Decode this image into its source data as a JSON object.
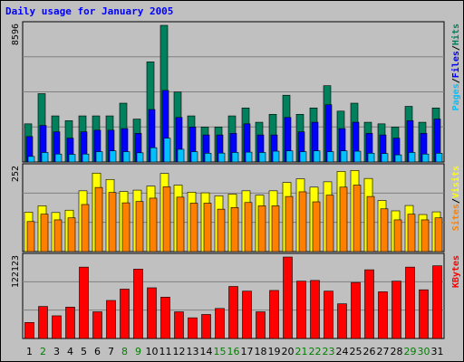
{
  "title": "Daily usage for January 2005",
  "colors": {
    "background": "#c0c0c0",
    "plot_bg": "#c0c0c0",
    "hits": "#00805c",
    "files": "#0000ff",
    "pages": "#00c0ff",
    "visits": "#ffff00",
    "sites": "#ff8000",
    "kbytes": "#ff0000",
    "title": "#0000ff"
  },
  "chart_data": [
    {
      "type": "bar",
      "panel": "top",
      "ymax_label": "8596",
      "ylim": [
        0,
        8596
      ],
      "legend": [
        {
          "text": "Pages",
          "color": "#00c0ff"
        },
        {
          "text": "/",
          "color": "#000000"
        },
        {
          "text": "Files",
          "color": "#0000ff"
        },
        {
          "text": "/",
          "color": "#000000"
        },
        {
          "text": "Hits",
          "color": "#00805c"
        }
      ],
      "categories": [
        "1",
        "2",
        "3",
        "4",
        "5",
        "6",
        "7",
        "8",
        "9",
        "10",
        "11",
        "12",
        "13",
        "14",
        "15",
        "16",
        "17",
        "18",
        "19",
        "20",
        "21",
        "22",
        "23",
        "24",
        "25",
        "26",
        "27",
        "28",
        "29",
        "30",
        "31"
      ],
      "series": [
        {
          "name": "Hits",
          "values": [
            2400,
            4300,
            2900,
            2600,
            2900,
            2900,
            2900,
            3700,
            2700,
            6300,
            8596,
            4400,
            2900,
            2200,
            2200,
            2900,
            3400,
            2500,
            3000,
            4200,
            3000,
            3400,
            4800,
            3200,
            3700,
            2500,
            2400,
            2200,
            3500,
            2500,
            3400
          ]
        },
        {
          "name": "Files",
          "values": [
            1600,
            2300,
            1900,
            1500,
            1900,
            2000,
            2000,
            2100,
            1800,
            3300,
            4500,
            2800,
            2200,
            1700,
            1700,
            1800,
            2400,
            1700,
            1700,
            2800,
            1900,
            2500,
            3600,
            2100,
            2500,
            1800,
            1700,
            1500,
            2600,
            1800,
            2700
          ]
        },
        {
          "name": "Pages",
          "values": [
            350,
            600,
            500,
            480,
            500,
            650,
            700,
            650,
            580,
            900,
            1500,
            800,
            650,
            550,
            560,
            600,
            620,
            600,
            680,
            700,
            650,
            700,
            650,
            700,
            680,
            550,
            530,
            450,
            600,
            500,
            550
          ]
        }
      ]
    },
    {
      "type": "bar",
      "panel": "middle",
      "ymax_label": "252",
      "ylim": [
        0,
        252
      ],
      "legend": [
        {
          "text": "Sites",
          "color": "#ff8000"
        },
        {
          "text": "/",
          "color": "#000000"
        },
        {
          "text": "Visits",
          "color": "#ffff00"
        }
      ],
      "categories": [
        "1",
        "2",
        "3",
        "4",
        "5",
        "6",
        "7",
        "8",
        "9",
        "10",
        "11",
        "12",
        "13",
        "14",
        "15",
        "16",
        "17",
        "18",
        "19",
        "20",
        "21",
        "22",
        "23",
        "24",
        "25",
        "26",
        "27",
        "28",
        "29",
        "30",
        "31"
      ],
      "series": [
        {
          "name": "Visits",
          "values": [
            118,
            137,
            117,
            124,
            182,
            235,
            216,
            180,
            184,
            196,
            234,
            199,
            178,
            176,
            167,
            172,
            182,
            169,
            182,
            207,
            218,
            193,
            209,
            240,
            243,
            219,
            153,
            122,
            138,
            111,
            119
          ]
        },
        {
          "name": "Sites",
          "values": [
            90,
            112,
            95,
            101,
            141,
            192,
            177,
            146,
            150,
            160,
            194,
            163,
            145,
            145,
            127,
            132,
            147,
            137,
            137,
            165,
            179,
            149,
            169,
            193,
            199,
            165,
            128,
            95,
            112,
            95,
            101
          ]
        }
      ]
    },
    {
      "type": "bar",
      "panel": "bottom",
      "ymax_label": "122123",
      "ylim": [
        0,
        122123
      ],
      "legend": [
        {
          "text": "KBytes",
          "color": "#ff0000"
        }
      ],
      "categories": [
        "1",
        "2",
        "3",
        "4",
        "5",
        "6",
        "7",
        "8",
        "9",
        "10",
        "11",
        "12",
        "13",
        "14",
        "15",
        "16",
        "17",
        "18",
        "19",
        "20",
        "21",
        "22",
        "23",
        "24",
        "25",
        "26",
        "27",
        "28",
        "29",
        "30",
        "31"
      ],
      "series": [
        {
          "name": "KBytes",
          "values": [
            24000,
            48000,
            34000,
            47000,
            107000,
            40000,
            57000,
            74000,
            104000,
            76000,
            62000,
            40000,
            31000,
            36000,
            45000,
            78000,
            71000,
            40000,
            72000,
            122123,
            86000,
            87000,
            71000,
            52000,
            84000,
            103000,
            70000,
            86000,
            107000,
            73000,
            109000
          ]
        }
      ]
    }
  ],
  "x_label_colors": [
    "#000000",
    "#008000",
    "#000000",
    "#000000",
    "#000000",
    "#000000",
    "#000000",
    "#008000",
    "#008000",
    "#000000",
    "#000000",
    "#000000",
    "#000000",
    "#000000",
    "#008000",
    "#008000",
    "#000000",
    "#000000",
    "#000000",
    "#000000",
    "#008000",
    "#008000",
    "#008000",
    "#000000",
    "#000000",
    "#000000",
    "#000000",
    "#000000",
    "#008000",
    "#008000",
    "#000000"
  ]
}
